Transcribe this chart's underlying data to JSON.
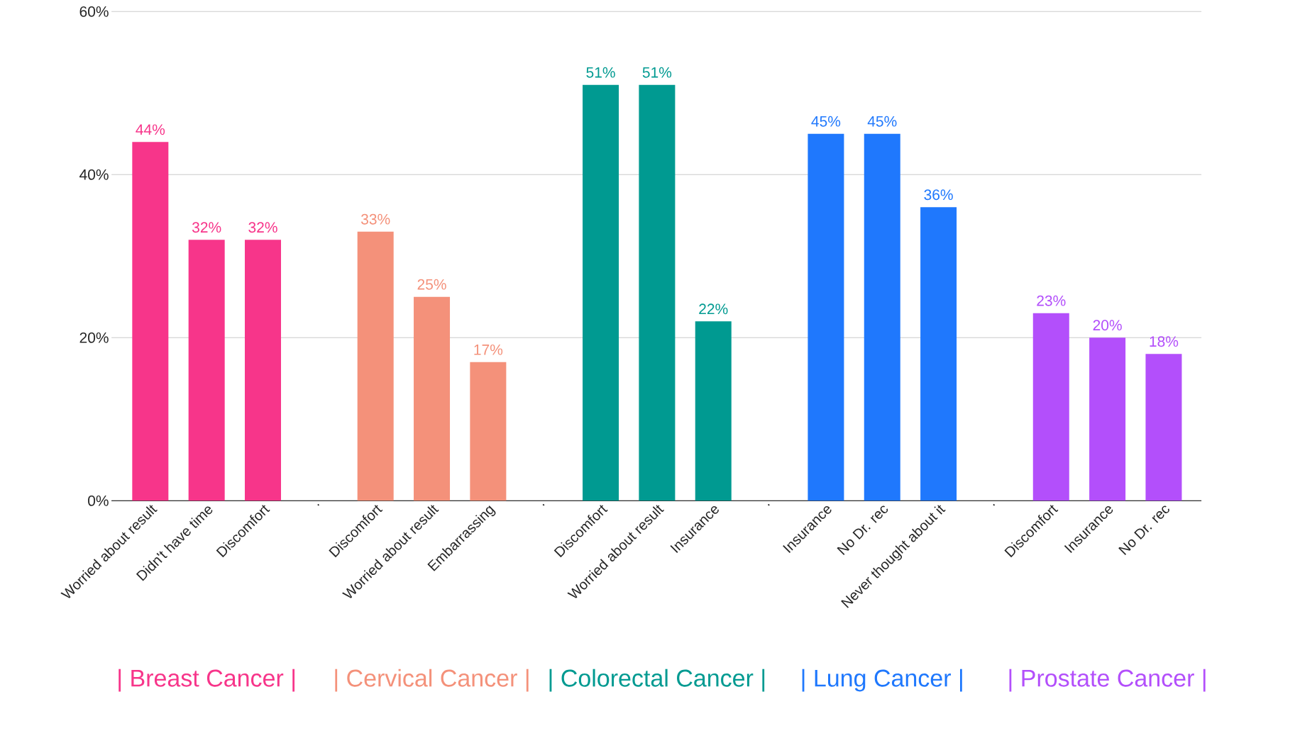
{
  "chart_data": {
    "type": "bar",
    "categories": [
      "Worried about result",
      "Didn't have time",
      "Discomfort",
      ".",
      "Discomfort",
      "Worried about result",
      "Embarrassing",
      ".",
      "Discomfort",
      "Worried about result",
      "Insurance",
      ".",
      "Insurance",
      "No Dr. rec",
      "Never thought about it",
      ".",
      "Discomfort",
      "Insurance",
      "No Dr. rec"
    ],
    "series": [
      {
        "name": "| Breast Cancer |",
        "color": "#f7358a",
        "values": [
          44,
          32,
          32,
          null,
          null,
          null,
          null,
          null,
          null,
          null,
          null,
          null,
          null,
          null,
          null,
          null,
          null,
          null,
          null
        ],
        "value_labels": [
          "44%",
          "32%",
          "32%",
          null,
          null,
          null,
          null,
          null,
          null,
          null,
          null,
          null,
          null,
          null,
          null,
          null,
          null,
          null,
          null
        ]
      },
      {
        "name": "| Cervical Cancer |",
        "color": "#f4917a",
        "values": [
          null,
          null,
          null,
          null,
          33,
          25,
          17,
          null,
          null,
          null,
          null,
          null,
          null,
          null,
          null,
          null,
          null,
          null,
          null
        ],
        "value_labels": [
          null,
          null,
          null,
          null,
          "33%",
          "25%",
          "17%",
          null,
          null,
          null,
          null,
          null,
          null,
          null,
          null,
          null,
          null,
          null,
          null
        ]
      },
      {
        "name": "| Colorectal Cancer |",
        "color": "#009a91",
        "values": [
          null,
          null,
          null,
          null,
          null,
          null,
          null,
          null,
          51,
          51,
          22,
          null,
          null,
          null,
          null,
          null,
          null,
          null,
          null
        ],
        "value_labels": [
          null,
          null,
          null,
          null,
          null,
          null,
          null,
          null,
          "51%",
          "51%",
          "22%",
          null,
          null,
          null,
          null,
          null,
          null,
          null,
          null
        ]
      },
      {
        "name": "| Lung Cancer |",
        "color": "#1f78fd",
        "values": [
          null,
          null,
          null,
          null,
          null,
          null,
          null,
          null,
          null,
          null,
          null,
          null,
          45,
          45,
          36,
          null,
          null,
          null,
          null
        ],
        "value_labels": [
          null,
          null,
          null,
          null,
          null,
          null,
          null,
          null,
          null,
          null,
          null,
          null,
          "45%",
          "45%",
          "36%",
          null,
          null,
          null,
          null
        ]
      },
      {
        "name": "| Prostate Cancer |",
        "color": "#b34ffb",
        "values": [
          null,
          null,
          null,
          null,
          null,
          null,
          null,
          null,
          null,
          null,
          null,
          null,
          null,
          null,
          null,
          null,
          23,
          20,
          18
        ],
        "value_labels": [
          null,
          null,
          null,
          null,
          null,
          null,
          null,
          null,
          null,
          null,
          null,
          null,
          null,
          null,
          null,
          null,
          "23%",
          "20%",
          "18%"
        ]
      }
    ],
    "ylim": [
      0,
      60
    ],
    "yticks": [
      {
        "value": 0,
        "label": "0%"
      },
      {
        "value": 20,
        "label": "20%"
      },
      {
        "value": 40,
        "label": "40%"
      },
      {
        "value": 60,
        "label": "60%"
      }
    ],
    "grid": "y",
    "legend": "bottom"
  }
}
